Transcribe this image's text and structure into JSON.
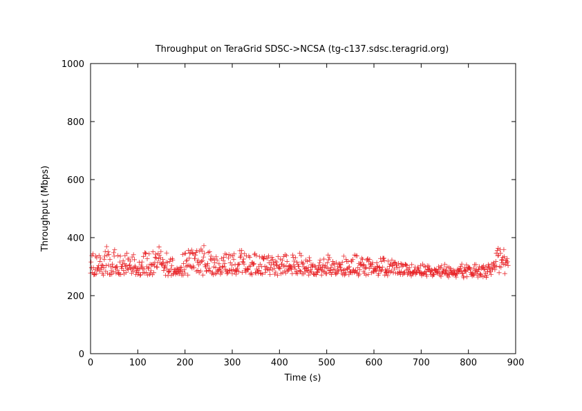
{
  "chart_data": {
    "type": "scatter",
    "title": "Throughput on TeraGrid SDSC->NCSA (tg-c137.sdsc.teragrid.org)",
    "xlabel": "Time (s)",
    "ylabel": "Throughput (Mbps)",
    "xlim": [
      0,
      900
    ],
    "ylim": [
      0,
      1000
    ],
    "xticks": [
      0,
      100,
      200,
      300,
      400,
      500,
      600,
      700,
      800,
      900
    ],
    "yticks": [
      0,
      200,
      400,
      600,
      800,
      1000
    ],
    "grid": false,
    "marker": "+",
    "colors": {
      "series": "#e8262a",
      "axes": "#000000"
    },
    "series": [
      {
        "x_start": 0,
        "x_end": 850,
        "x_step": 1,
        "y": [
          278,
          316,
          296,
          338,
          280,
          344,
          296,
          272,
          275,
          273,
          289,
          336,
          275,
          331,
          288,
          297,
          294,
          303,
          338,
          284,
          318,
          330,
          290,
          297,
          306,
          277,
          303,
          271,
          296,
          325,
          336,
          352,
          284,
          304,
          369,
          339,
          277,
          351,
          305,
          342,
          273,
          325,
          273,
          300,
          286,
          274,
          309,
          299,
          282,
          348,
          336,
          358,
          297,
          297,
          278,
          300,
          300,
          288,
          338,
          276,
          279,
          273,
          316,
          336,
          273,
          300,
          294,
          301,
          309,
          320,
          287,
          275,
          310,
          338,
          300,
          280,
          304,
          346,
          293,
          326,
          290,
          326,
          303,
          306,
          319,
          296,
          293,
          277,
          333,
          293,
          284,
          341,
          296,
          324,
          302,
          298,
          273,
          281,
          287,
          292,
          273,
          294,
          279,
          315,
          292,
          270,
          272,
          305,
          299,
          316,
          295,
          280,
          335,
          292,
          277,
          348,
          345,
          346,
          280,
          300,
          327,
          271,
          293,
          297,
          344,
          273,
          308,
          277,
          286,
          307,
          306,
          272,
          351,
          309,
          279,
          302,
          314,
          332,
          343,
          329,
          299,
          298,
          314,
          345,
          327,
          368,
          339,
          314,
          331,
          352,
          309,
          306,
          311,
          325,
          314,
          287,
          296,
          300,
          303,
          270,
          315,
          347,
          292,
          314,
          269,
          283,
          281,
          285,
          318,
          326,
          292,
          270,
          303,
          328,
          323,
          274,
          277,
          289,
          284,
          289,
          274,
          282,
          279,
          295,
          290,
          276,
          292,
          284,
          276,
          286,
          296,
          283,
          298,
          271,
          284,
          342,
          271,
          311,
          289,
          345,
          278,
          346,
          300,
          319,
          323,
          303,
          271,
          356,
          305,
          329,
          346,
          302,
          348,
          299,
          357,
          295,
          346,
          302,
          344,
          296,
          328,
          328,
          340,
          349,
          284,
          355,
          316,
          287,
          322,
          306,
          279,
          353,
          313,
          285,
          361,
          318,
          354,
          321,
          271,
          333,
          372,
          345,
          307,
          300,
          300,
          284,
          286,
          305,
          311,
          349,
          287,
          295,
          351,
          285,
          326,
          336,
          322,
          276,
          281,
          327,
          272,
          299,
          326,
          313,
          275,
          297,
          334,
          278,
          322,
          286,
          284,
          289,
          310,
          292,
          297,
          274,
          285,
          328,
          279,
          298,
          301,
          321,
          332,
          300,
          311,
          344,
          290,
          285,
          341,
          276,
          285,
          279,
          330,
          342,
          288,
          286,
          313,
          338,
          288,
          305,
          276,
          337,
          290,
          325,
          344,
          283,
          307,
          287,
          274,
          289,
          285,
          295,
          307,
          308,
          283,
          309,
          355,
          332,
          336,
          344,
          356,
          280,
          317,
          315,
          326,
          309,
          345,
          286,
          293,
          281,
          337,
          290,
          290,
          293,
          289,
          337,
          301,
          332,
          274,
          302,
          278,
          313,
          272,
          314,
          309,
          308,
          310,
          341,
          345,
          280,
          277,
          338,
          292,
          285,
          284,
          278,
          300,
          287,
          334,
          308,
          277,
          276,
          300,
          333,
          274,
          330,
          326,
          327,
          335,
          301,
          280,
          290,
          330,
          298,
          291,
          329,
          291,
          337,
          313,
          288,
          273,
          296,
          321,
          307,
          332,
          289,
          325,
          313,
          307,
          294,
          274,
          319,
          281,
          306,
          316,
          304,
          270,
          335,
          299,
          295,
          299,
          293,
          326,
          276,
          308,
          309,
          322,
          279,
          302,
          335,
          303,
          285,
          341,
          278,
          301,
          338,
          318,
          284,
          291,
          288,
          300,
          304,
          293,
          301,
          301,
          291,
          296,
          276,
          340,
          332,
          306,
          319,
          300,
          292,
          331,
          277,
          282,
          315,
          276,
          309,
          301,
          301,
          287,
          346,
          284,
          283,
          338,
          316,
          275,
          309,
          312,
          275,
          299,
          292,
          281,
          294,
          323,
          295,
          287,
          318,
          285,
          297,
          271,
          331,
          321,
          279,
          289,
          307,
          283,
          299,
          303,
          307,
          275,
          274,
          273,
          302,
          298,
          274,
          272,
          290,
          282,
          280,
          293,
          304,
          289,
          314,
          322,
          299,
          291,
          271,
          286,
          297,
          306,
          284,
          326,
          298,
          281,
          303,
          276,
          298,
          276,
          313,
          294,
          340,
          324,
          286,
          331,
          279,
          288,
          297,
          273,
          306,
          280,
          318,
          290,
          311,
          307,
          291,
          280,
          274,
          314,
          276,
          286,
          300,
          286,
          285,
          310,
          308,
          297,
          298,
          306,
          289,
          278,
          315,
          272,
          287,
          336,
          289,
          271,
          275,
          280,
          325,
          318,
          293,
          291,
          318,
          297,
          272,
          300,
          283,
          283,
          281,
          320,
          317,
          279,
          325,
          289,
          288,
          280,
          340,
          283,
          287,
          338,
          281,
          337,
          278,
          296,
          269,
          311,
          274,
          289,
          306,
          315,
          308,
          329,
          303,
          325,
          305,
          283,
          307,
          277,
          294,
          297,
          271,
          297,
          322,
          326,
          327,
          273,
          317,
          294,
          325,
          306,
          310,
          300,
          279,
          307,
          314,
          283,
          283,
          294,
          284,
          291,
          295,
          285,
          288,
          313,
          301,
          298,
          270,
          276,
          299,
          296,
          288,
          328,
          285,
          318,
          289,
          298,
          329,
          328,
          329,
          321,
          271,
          288,
          279,
          282,
          280,
          292,
          269,
          319,
          280,
          286,
          301,
          309,
          281,
          308,
          285,
          323,
          304,
          303,
          279,
          312,
          292,
          314,
          315,
          278,
          306,
          306,
          297,
          277,
          278,
          311,
          297,
          281,
          279,
          273,
          310,
          283,
          308,
          301,
          273,
          305,
          278,
          277,
          281,
          307,
          308,
          305,
          288,
          304,
          273,
          292,
          278,
          278,
          296,
          282,
          278,
          278,
          268,
          307,
          277,
          278,
          280,
          279,
          283,
          288,
          298,
          274,
          282,
          279,
          280,
          293,
          298,
          288,
          293,
          281,
          279,
          278,
          304,
          279,
          269,
          276,
          309,
          275,
          274,
          302,
          278,
          282,
          299,
          273,
          283,
          267,
          303,
          290,
          292,
          302,
          288,
          295,
          282,
          283,
          273,
          288,
          286,
          268,
          274,
          272,
          273,
          291,
          289,
          286,
          286,
          289,
          279,
          283,
          277,
          283,
          300,
          292,
          277,
          271,
          296,
          266,
          303,
          277,
          279,
          285,
          284,
          292,
          276,
          308,
          279,
          285,
          288,
          274,
          299,
          269,
          276,
          264,
          298,
          273,
          284,
          294,
          280,
          288,
          276,
          278,
          272,
          288,
          276,
          285,
          278,
          274,
          271,
          264,
          278,
          275,
          291,
          287,
          282,
          290,
          288,
          283,
          294,
          301,
          284,
          309,
          276,
          277,
          267,
          262,
          288,
          296,
          283,
          286,
          283,
          306,
          265,
          290,
          298,
          294,
          298,
          294,
          296,
          290,
          280,
          273,
          275,
          268,
          278,
          272,
          295,
          270,
          307,
          286,
          281,
          307,
          290,
          275,
          283,
          264,
          289,
          290,
          300,
          269,
          276,
          273,
          269,
          294,
          299,
          297,
          265,
          303,
          290,
          292,
          269,
          278,
          299,
          263,
          269,
          290,
          282,
          307,
          302,
          296,
          283,
          294,
          283,
          273,
          309,
          294,
          289,
          309,
          297,
          313,
          303,
          289,
          301,
          318,
          346,
          301,
          356,
          338,
          363,
          339,
          279,
          300,
          359,
          346,
          298,
          322,
          313,
          324,
          332,
          309,
          359,
          334,
          276,
          307,
          320,
          320,
          313,
          328,
          317,
          304
        ]
      }
    ]
  }
}
